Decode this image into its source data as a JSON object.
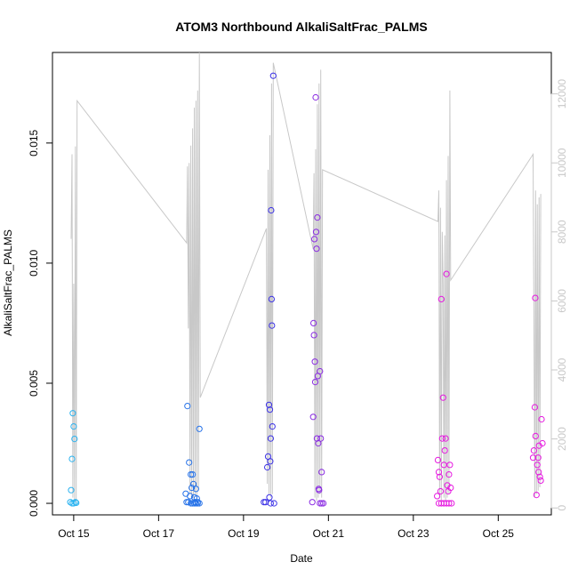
{
  "chart_data": {
    "type": "scatter",
    "title": "ATOM3 Northbound AlkaliSaltFrac_PALMS",
    "xlabel": "Date",
    "ylabel": "AlkaliSaltFrac_PALMS",
    "x_ticks": [
      {
        "x": 14.8,
        "label": "Oct 15"
      },
      {
        "x": 16.8,
        "label": "Oct 17"
      },
      {
        "x": 18.8,
        "label": "Oct 19"
      },
      {
        "x": 20.8,
        "label": "Oct 21"
      },
      {
        "x": 22.8,
        "label": "Oct 23"
      },
      {
        "x": 24.8,
        "label": "Oct 25"
      }
    ],
    "xlim": [
      14.3,
      26.05
    ],
    "y_ticks": [
      {
        "y": 0.0,
        "label": "0.000"
      },
      {
        "y": 0.005,
        "label": "0.005"
      },
      {
        "y": 0.01,
        "label": "0.010"
      },
      {
        "y": 0.015,
        "label": "0.015"
      }
    ],
    "ylim": [
      -0.00048,
      0.01877
    ],
    "y2_ticks": [
      {
        "y": 0,
        "label": "0"
      },
      {
        "y": 2000,
        "label": "2000"
      },
      {
        "y": 4000,
        "label": "4000"
      },
      {
        "y": 6000,
        "label": "6000"
      },
      {
        "y": 8000,
        "label": "8000"
      },
      {
        "y": 10000,
        "label": "10000"
      },
      {
        "y": 12000,
        "label": "12000"
      }
    ],
    "y2lim": [
      -200,
      13200
    ],
    "grid": false,
    "secondary_line": {
      "color": "#c8c8c8",
      "points": [
        [
          14.74,
          7800
        ],
        [
          14.76,
          10250
        ],
        [
          14.78,
          300
        ],
        [
          14.8,
          6500
        ],
        [
          14.82,
          200
        ],
        [
          14.84,
          10480
        ],
        [
          14.86,
          150
        ],
        [
          14.88,
          11800
        ],
        [
          17.46,
          7680
        ],
        [
          17.48,
          9900
        ],
        [
          17.5,
          5200
        ],
        [
          17.52,
          10000
        ],
        [
          17.54,
          400
        ],
        [
          17.56,
          10500
        ],
        [
          17.58,
          250
        ],
        [
          17.6,
          11000
        ],
        [
          17.62,
          300
        ],
        [
          17.64,
          11600
        ],
        [
          17.66,
          400
        ],
        [
          17.68,
          11800
        ],
        [
          17.7,
          300
        ],
        [
          17.72,
          12100
        ],
        [
          17.74,
          500
        ],
        [
          17.76,
          13200
        ],
        [
          17.78,
          3200
        ],
        [
          19.34,
          8100
        ],
        [
          19.36,
          700
        ],
        [
          19.38,
          9800
        ],
        [
          19.4,
          400
        ],
        [
          19.42,
          10800
        ],
        [
          19.44,
          300
        ],
        [
          19.46,
          12300
        ],
        [
          19.48,
          400
        ],
        [
          19.5,
          12900
        ],
        [
          20.44,
          7500
        ],
        [
          20.46,
          9700
        ],
        [
          20.48,
          300
        ],
        [
          20.5,
          10400
        ],
        [
          20.52,
          200
        ],
        [
          20.54,
          11700
        ],
        [
          20.56,
          300
        ],
        [
          20.58,
          12300
        ],
        [
          20.6,
          400
        ],
        [
          20.62,
          12700
        ],
        [
          20.64,
          300
        ],
        [
          20.66,
          9800
        ],
        [
          23.38,
          8300
        ],
        [
          23.4,
          9200
        ],
        [
          23.42,
          300
        ],
        [
          23.44,
          8700
        ],
        [
          23.46,
          200
        ],
        [
          23.48,
          8000
        ],
        [
          23.5,
          6500
        ],
        [
          23.52,
          300
        ],
        [
          23.54,
          7900
        ],
        [
          23.56,
          200
        ],
        [
          23.58,
          9500
        ],
        [
          23.6,
          300
        ],
        [
          23.62,
          10200
        ],
        [
          23.64,
          400
        ],
        [
          23.66,
          12100
        ],
        [
          23.68,
          6600
        ],
        [
          25.62,
          10250
        ],
        [
          25.64,
          5500
        ],
        [
          25.66,
          300
        ],
        [
          25.68,
          9200
        ],
        [
          25.7,
          400
        ],
        [
          25.72,
          8800
        ],
        [
          25.74,
          500
        ],
        [
          25.76,
          9000
        ],
        [
          25.78,
          600
        ],
        [
          25.8,
          9100
        ]
      ]
    },
    "series": [
      {
        "color": "#2bb3f0",
        "points": [
          [
            14.72,
            5e-05
          ],
          [
            14.74,
            0.00055
          ],
          [
            14.76,
            0.00185
          ],
          [
            14.78,
            0.00375
          ],
          [
            14.8,
            0.0032
          ],
          [
            14.82,
            0.00268
          ],
          [
            14.84,
            5e-05
          ],
          [
            14.86,
            2e-05
          ],
          [
            14.76,
            0.0
          ],
          [
            14.8,
            0.0
          ]
        ]
      },
      {
        "color": "#2672e8",
        "points": [
          [
            17.44,
            0.0004
          ],
          [
            17.46,
            5e-05
          ],
          [
            17.48,
            0.00405
          ],
          [
            17.5,
            5e-05
          ],
          [
            17.52,
            0.0017
          ],
          [
            17.54,
            0.0003
          ],
          [
            17.56,
            0.0012
          ],
          [
            17.58,
            0.00065
          ],
          [
            17.6,
            0.0012
          ],
          [
            17.62,
            0.0008
          ],
          [
            17.64,
            0.00025
          ],
          [
            17.66,
            5e-05
          ],
          [
            17.68,
            0.0006
          ],
          [
            17.7,
            0.0002
          ],
          [
            17.72,
            5e-05
          ],
          [
            17.76,
            0.0031
          ],
          [
            17.56,
            0.0
          ],
          [
            17.6,
            0.0
          ],
          [
            17.64,
            0.0
          ],
          [
            17.68,
            0.0
          ],
          [
            17.72,
            0.0
          ],
          [
            17.76,
            0.0
          ]
        ]
      },
      {
        "color": "#3c32e6",
        "points": [
          [
            19.28,
            5e-05
          ],
          [
            19.32,
            5e-05
          ],
          [
            19.36,
            0.0015
          ],
          [
            19.38,
            0.00195
          ],
          [
            19.4,
            0.0041
          ],
          [
            19.41,
            0.00025
          ],
          [
            19.42,
            0.0039
          ],
          [
            19.43,
            0.00175
          ],
          [
            19.44,
            0.0027
          ],
          [
            19.45,
            0.0122
          ],
          [
            19.46,
            0.0085
          ],
          [
            19.47,
            0.0074
          ],
          [
            19.48,
            0.0032
          ],
          [
            19.5,
            0.0178
          ],
          [
            19.44,
            0.0
          ],
          [
            19.52,
            0.0
          ]
        ]
      },
      {
        "color": "#8a2be2",
        "points": [
          [
            20.42,
            5e-05
          ],
          [
            20.44,
            0.0036
          ],
          [
            20.45,
            0.0075
          ],
          [
            20.46,
            0.007
          ],
          [
            20.47,
            0.011
          ],
          [
            20.48,
            0.0059
          ],
          [
            20.49,
            0.00505
          ],
          [
            20.5,
            0.0169
          ],
          [
            20.51,
            0.0113
          ],
          [
            20.52,
            0.0106
          ],
          [
            20.53,
            0.0027
          ],
          [
            20.54,
            0.0119
          ],
          [
            20.55,
            0.0053
          ],
          [
            20.56,
            0.0025
          ],
          [
            20.57,
            0.0006
          ],
          [
            20.58,
            0.00055
          ],
          [
            20.6,
            0.0055
          ],
          [
            20.62,
            0.0027
          ],
          [
            20.64,
            0.0013
          ],
          [
            20.6,
            0.0
          ],
          [
            20.64,
            0.0
          ],
          [
            20.68,
            0.0
          ]
        ]
      },
      {
        "color": "#e619e0",
        "points": [
          [
            23.36,
            0.0003
          ],
          [
            23.38,
            0.0018
          ],
          [
            23.4,
            0.0013
          ],
          [
            23.42,
            0.0011
          ],
          [
            23.44,
            0.0005
          ],
          [
            23.46,
            0.0085
          ],
          [
            23.48,
            0.0027
          ],
          [
            23.5,
            0.0044
          ],
          [
            23.52,
            0.0016
          ],
          [
            23.54,
            0.0022
          ],
          [
            23.56,
            0.0027
          ],
          [
            23.58,
            0.00955
          ],
          [
            23.6,
            0.00075
          ],
          [
            23.62,
            0.0005
          ],
          [
            23.64,
            0.0012
          ],
          [
            23.66,
            0.0016
          ],
          [
            23.68,
            0.00065
          ],
          [
            23.4,
            0.0
          ],
          [
            23.46,
            0.0
          ],
          [
            23.52,
            0.0
          ],
          [
            23.58,
            0.0
          ],
          [
            23.64,
            0.0
          ],
          [
            23.7,
            0.0
          ]
        ]
      },
      {
        "color": "#e619e0",
        "points": [
          [
            25.62,
            0.0019
          ],
          [
            25.64,
            0.0022
          ],
          [
            25.66,
            0.004
          ],
          [
            25.67,
            0.00855
          ],
          [
            25.68,
            0.0028
          ],
          [
            25.7,
            0.00035
          ],
          [
            25.72,
            0.0016
          ],
          [
            25.74,
            0.0019
          ],
          [
            25.75,
            0.0013
          ],
          [
            25.76,
            0.0024
          ],
          [
            25.78,
            0.0011
          ],
          [
            25.8,
            0.00095
          ],
          [
            25.82,
            0.0035
          ],
          [
            25.84,
            0.0025
          ]
        ]
      }
    ]
  }
}
